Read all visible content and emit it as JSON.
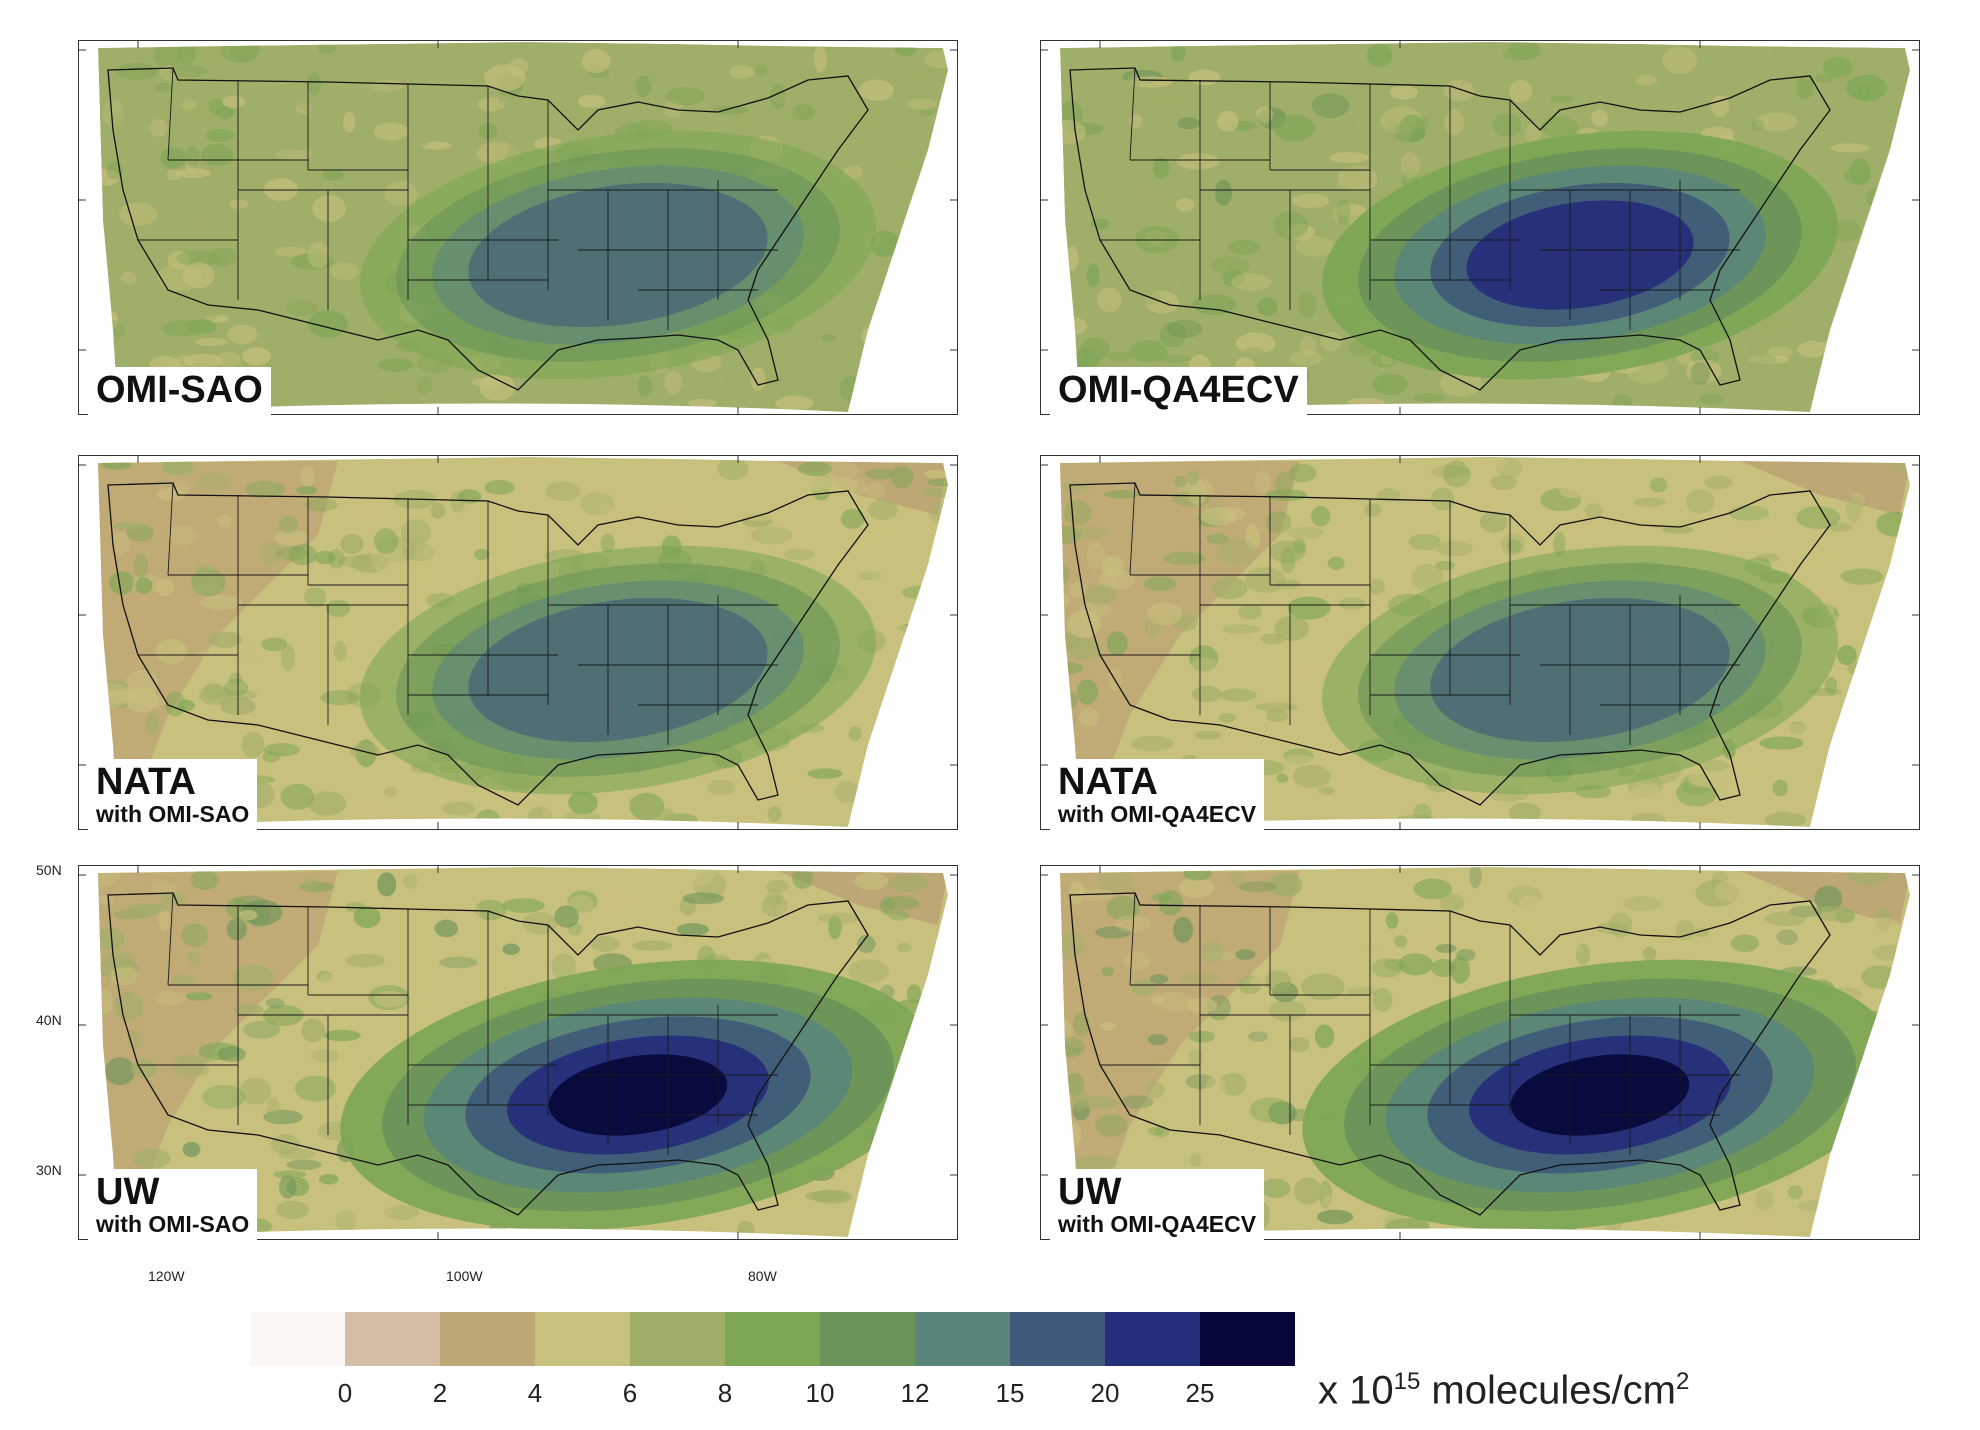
{
  "panels": [
    {
      "title": "OMI-SAO",
      "subtitle": "",
      "intensity": 0.55,
      "blob": "weak"
    },
    {
      "title": "OMI-QA4ECV",
      "subtitle": "",
      "intensity": 0.75,
      "blob": "medium"
    },
    {
      "title": "NATA",
      "subtitle": "with OMI-SAO",
      "intensity": 0.5,
      "blob": "weak"
    },
    {
      "title": "NATA",
      "subtitle": "with OMI-QA4ECV",
      "intensity": 0.55,
      "blob": "weak"
    },
    {
      "title": "UW",
      "subtitle": "with OMI-SAO",
      "intensity": 1.0,
      "blob": "strong"
    },
    {
      "title": "UW",
      "subtitle": "with OMI-QA4ECV",
      "intensity": 1.0,
      "blob": "strong"
    }
  ],
  "axes": {
    "lat_labels": [
      "50N",
      "40N",
      "30N"
    ],
    "lon_labels": [
      "120W",
      "100W",
      "80W"
    ]
  },
  "legend": {
    "ticks": [
      "0",
      "2",
      "4",
      "6",
      "8",
      "10",
      "12",
      "15",
      "20",
      "25"
    ],
    "colors": [
      "#faf7f4",
      "#d4bea5",
      "#bea776",
      "#c8c07d",
      "#9fae68",
      "#7da655",
      "#6b9459",
      "#5a857a",
      "#3f5a7a",
      "#252e7a",
      "#06063a"
    ],
    "units_prefix": "x 10",
    "units_exp": "15",
    "units_suffix": " molecules/cm",
    "units_sq": "2"
  }
}
